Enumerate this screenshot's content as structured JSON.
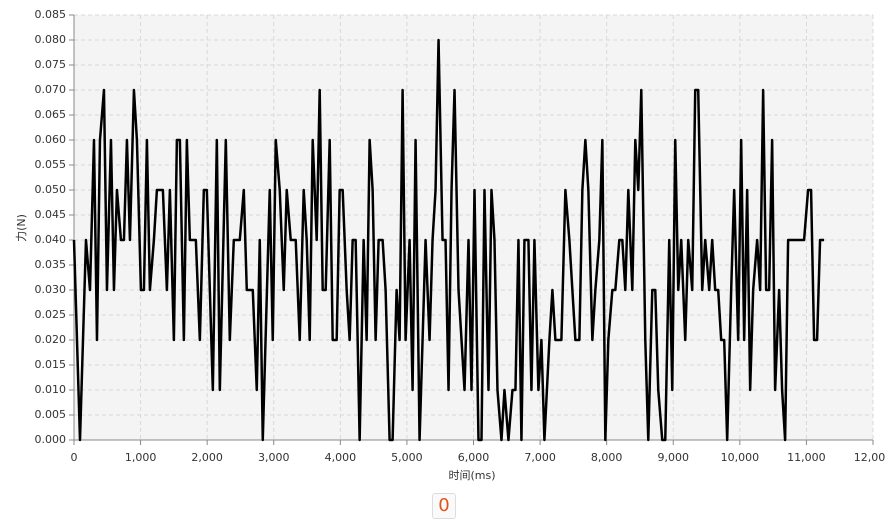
{
  "chart_data": {
    "type": "line",
    "x_label": "时间(ms)",
    "y_label": "力(N)",
    "xlim": [
      0,
      12000
    ],
    "xticks": [
      0,
      {
        "value": 1000,
        "label": "1,000"
      },
      {
        "value": 2000,
        "label": "2,000"
      },
      {
        "value": 3000,
        "label": "3,000"
      },
      {
        "value": 4000,
        "label": "4,000"
      },
      {
        "value": 5000,
        "label": "5,000"
      },
      {
        "value": 6000,
        "label": "6,000"
      },
      {
        "value": 7000,
        "label": "7,000"
      },
      {
        "value": 8000,
        "label": "8,000"
      },
      {
        "value": 9000,
        "label": "9,000"
      },
      {
        "value": 10000,
        "label": "10,000"
      },
      {
        "value": 11000,
        "label": "11,000"
      },
      {
        "value": 12000,
        "label": "12,000"
      }
    ],
    "ylim": [
      0,
      0.085
    ],
    "yticks": [
      {
        "value": 0,
        "label": "0.000"
      },
      {
        "value": 0.005,
        "label": "0.005"
      },
      {
        "value": 0.01,
        "label": "0.010"
      },
      {
        "value": 0.015,
        "label": "0.015"
      },
      {
        "value": 0.02,
        "label": "0.020"
      },
      {
        "value": 0.025,
        "label": "0.025"
      },
      {
        "value": 0.03,
        "label": "0.030"
      },
      {
        "value": 0.035,
        "label": "0.035"
      },
      {
        "value": 0.04,
        "label": "0.040"
      },
      {
        "value": 0.045,
        "label": "0.045"
      },
      {
        "value": 0.05,
        "label": "0.050"
      },
      {
        "value": 0.055,
        "label": "0.055"
      },
      {
        "value": 0.06,
        "label": "0.060"
      },
      {
        "value": 0.065,
        "label": "0.065"
      },
      {
        "value": 0.07,
        "label": "0.070"
      },
      {
        "value": 0.075,
        "label": "0.075"
      },
      {
        "value": 0.08,
        "label": "0.080"
      },
      {
        "value": 0.085,
        "label": "0.085"
      }
    ],
    "grid": true,
    "color": "#000000",
    "x": [
      0,
      90,
      180,
      240,
      300,
      345,
      390,
      450,
      495,
      555,
      600,
      645,
      705,
      750,
      795,
      840,
      900,
      945,
      1005,
      1050,
      1095,
      1140,
      1200,
      1245,
      1335,
      1395,
      1440,
      1500,
      1545,
      1590,
      1650,
      1695,
      1740,
      1830,
      1890,
      1950,
      1995,
      2085,
      2145,
      2190,
      2280,
      2340,
      2400,
      2490,
      2550,
      2595,
      2685,
      2745,
      2790,
      2835,
      2940,
      2985,
      3030,
      3090,
      3150,
      3195,
      3255,
      3330,
      3390,
      3450,
      3495,
      3540,
      3585,
      3645,
      3690,
      3735,
      3780,
      3840,
      3885,
      3945,
      3990,
      4035,
      4095,
      4140,
      4185,
      4230,
      4290,
      4350,
      4395,
      4440,
      4485,
      4530,
      4575,
      4635,
      4680,
      4740,
      4785,
      4845,
      4890,
      4935,
      4980,
      5040,
      5085,
      5130,
      5190,
      5280,
      5340,
      5385,
      5430,
      5475,
      5535,
      5580,
      5625,
      5670,
      5715,
      5775,
      5865,
      5925,
      5970,
      6015,
      6075,
      6120,
      6165,
      6225,
      6270,
      6315,
      6360,
      6420,
      6465,
      6525,
      6585,
      6630,
      6675,
      6720,
      6765,
      6825,
      6870,
      6915,
      6975,
      7020,
      7065,
      7140,
      7185,
      7230,
      7320,
      7380,
      7440,
      7485,
      7530,
      7590,
      7635,
      7680,
      7725,
      7785,
      7830,
      7890,
      7935,
      7980,
      8025,
      8085,
      8130,
      8190,
      8235,
      8280,
      8325,
      8385,
      8430,
      8475,
      8520,
      8580,
      8625,
      8685,
      8730,
      8775,
      8835,
      8880,
      8940,
      8985,
      9030,
      9075,
      9120,
      9180,
      9225,
      9285,
      9330,
      9375,
      9435,
      9480,
      9540,
      9585,
      9630,
      9675,
      9720,
      9765,
      9810,
      9870,
      9915,
      9975,
      10020,
      10065,
      10110,
      10155,
      10200,
      10260,
      10305,
      10350,
      10395,
      10440,
      10485,
      10530,
      10590,
      10635,
      10680,
      10725,
      10875,
      10965,
      11025,
      11070,
      11115,
      11160,
      11205,
      11265
    ],
    "values": [
      0.04,
      0,
      0.04,
      0.03,
      0.06,
      0.02,
      0.06,
      0.07,
      0.03,
      0.06,
      0.03,
      0.05,
      0.04,
      0.04,
      0.06,
      0.04,
      0.07,
      0.06,
      0.03,
      0.03,
      0.06,
      0.03,
      0.04,
      0.05,
      0.05,
      0.03,
      0.05,
      0.02,
      0.06,
      0.06,
      0.02,
      0.06,
      0.04,
      0.04,
      0.02,
      0.05,
      0.05,
      0.01,
      0.06,
      0.01,
      0.06,
      0.02,
      0.04,
      0.04,
      0.05,
      0.03,
      0.03,
      0.01,
      0.04,
      0,
      0.05,
      0.02,
      0.06,
      0.05,
      0.03,
      0.05,
      0.04,
      0.04,
      0.02,
      0.05,
      0.04,
      0.02,
      0.06,
      0.04,
      0.07,
      0.03,
      0.03,
      0.06,
      0.02,
      0.02,
      0.05,
      0.05,
      0.03,
      0.02,
      0.04,
      0.04,
      0,
      0.04,
      0.02,
      0.06,
      0.05,
      0.02,
      0.04,
      0.04,
      0.03,
      0,
      0,
      0.03,
      0.02,
      0.07,
      0.02,
      0.04,
      0.01,
      0.06,
      0,
      0.04,
      0.02,
      0.04,
      0.05,
      0.08,
      0.04,
      0.04,
      0.01,
      0.05,
      0.07,
      0.03,
      0.01,
      0.04,
      0.01,
      0.05,
      0,
      0,
      0.05,
      0.01,
      0.05,
      0.04,
      0.01,
      0,
      0.01,
      0,
      0.01,
      0.01,
      0.04,
      0,
      0.04,
      0.04,
      0.01,
      0.04,
      0.01,
      0.02,
      0,
      0.02,
      0.03,
      0.02,
      0.02,
      0.05,
      0.04,
      0.03,
      0.02,
      0.02,
      0.05,
      0.06,
      0.05,
      0.02,
      0.03,
      0.04,
      0.06,
      0,
      0.02,
      0.03,
      0.03,
      0.04,
      0.04,
      0.03,
      0.05,
      0.03,
      0.06,
      0.05,
      0.07,
      0.02,
      0,
      0.03,
      0.03,
      0.01,
      0,
      0,
      0.04,
      0.01,
      0.06,
      0.03,
      0.04,
      0.02,
      0.04,
      0.03,
      0.07,
      0.07,
      0.03,
      0.04,
      0.03,
      0.04,
      0.03,
      0.03,
      0.02,
      0.02,
      0,
      0.03,
      0.05,
      0.02,
      0.06,
      0.02,
      0.05,
      0.01,
      0.03,
      0.04,
      0.03,
      0.07,
      0.03,
      0.03,
      0.06,
      0.01,
      0.03,
      0.01,
      0,
      0.04,
      0.04,
      0.04,
      0.05,
      0.05,
      0.02,
      0.02,
      0.04,
      0.04
    ]
  },
  "footer_button": "0"
}
